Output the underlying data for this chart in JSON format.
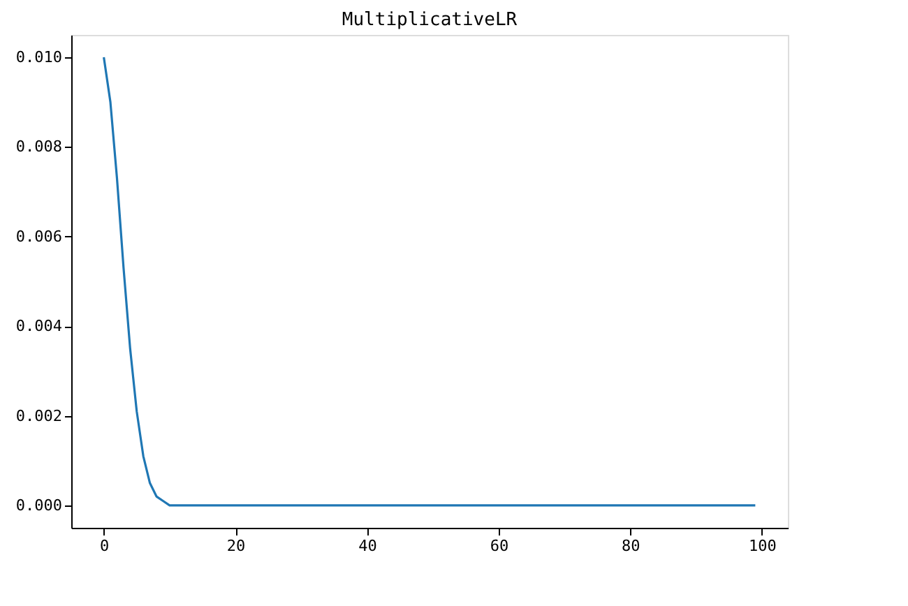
{
  "chart_data": {
    "type": "line",
    "title": "MultiplicativeLR",
    "x": [
      0,
      1,
      2,
      3,
      4,
      5,
      6,
      7,
      8,
      9,
      10,
      11,
      12,
      99
    ],
    "series": [
      {
        "color": "#1f77b4",
        "values": [
          0.01,
          0.009,
          0.0073,
          0.0053,
          0.0035,
          0.0021,
          0.0011,
          0.0005,
          0.0002,
          0.0001,
          0.0,
          0.0,
          0.0,
          0.0
        ]
      }
    ],
    "xlim": [
      -4.95,
      103.95
    ],
    "xticks": [
      0,
      20,
      40,
      60,
      80,
      100
    ],
    "ylim": [
      -0.0005,
      0.0105
    ],
    "yticks": [
      {
        "value": 0,
        "label": "0.000"
      },
      {
        "value": 0.002,
        "label": "0.002"
      },
      {
        "value": 0.004,
        "label": "0.004"
      },
      {
        "value": 0.006,
        "label": "0.006"
      },
      {
        "value": 0.008,
        "label": "0.008"
      },
      {
        "value": 0.01,
        "label": "0.010"
      }
    ],
    "grid": false,
    "legend": false,
    "marker": "none",
    "line_style": "solid"
  }
}
